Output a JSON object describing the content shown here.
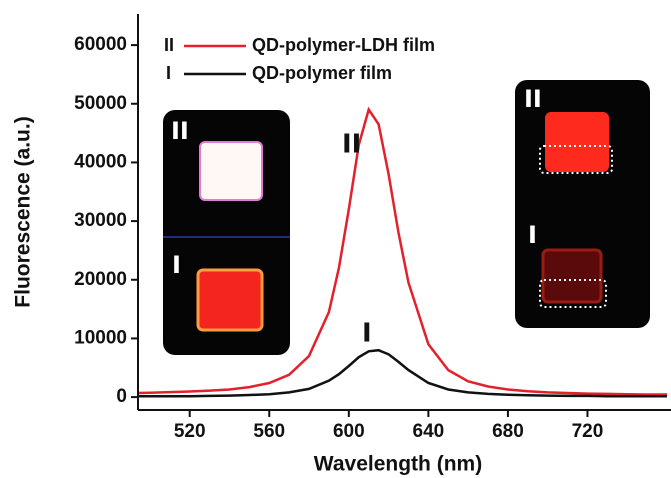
{
  "chart_data": {
    "type": "line",
    "xlabel": "Wavelength (nm)",
    "ylabel": "Fluorescence (a.u.)",
    "xlim": [
      494,
      762
    ],
    "ylim": [
      -2200,
      65300
    ],
    "xticks": [
      520,
      560,
      600,
      640,
      680,
      720
    ],
    "yticks": [
      0,
      10000,
      20000,
      30000,
      40000,
      50000,
      60000
    ],
    "x": [
      494,
      500,
      510,
      520,
      530,
      540,
      550,
      560,
      570,
      580,
      590,
      595,
      600,
      605,
      610,
      615,
      620,
      625,
      630,
      640,
      650,
      660,
      670,
      680,
      690,
      700,
      710,
      720,
      730,
      740,
      750,
      760
    ],
    "series": [
      {
        "name": "QD-polymer-LDH film",
        "label": "II",
        "color": "#e3202b",
        "values": [
          700,
          750,
          850,
          950,
          1100,
          1300,
          1700,
          2400,
          3800,
          7000,
          14500,
          22000,
          32000,
          43000,
          49000,
          46500,
          38000,
          28000,
          19500,
          9000,
          4600,
          2700,
          1800,
          1300,
          1000,
          800,
          700,
          600,
          550,
          500,
          450,
          450
        ]
      },
      {
        "name": "QD-polymer film",
        "label": "I",
        "color": "#111111",
        "values": [
          150,
          150,
          150,
          150,
          200,
          250,
          350,
          500,
          800,
          1400,
          2800,
          3900,
          5300,
          6800,
          7800,
          8000,
          7300,
          6000,
          4600,
          2400,
          1300,
          800,
          550,
          400,
          300,
          250,
          200,
          200,
          150,
          150,
          150,
          150
        ]
      }
    ],
    "annotations": [
      {
        "text": "II"
      },
      {
        "text": "I"
      }
    ],
    "insets": [
      {
        "labels": [
          "II",
          "I"
        ]
      },
      {
        "labels": [
          "II",
          "I"
        ]
      }
    ]
  }
}
